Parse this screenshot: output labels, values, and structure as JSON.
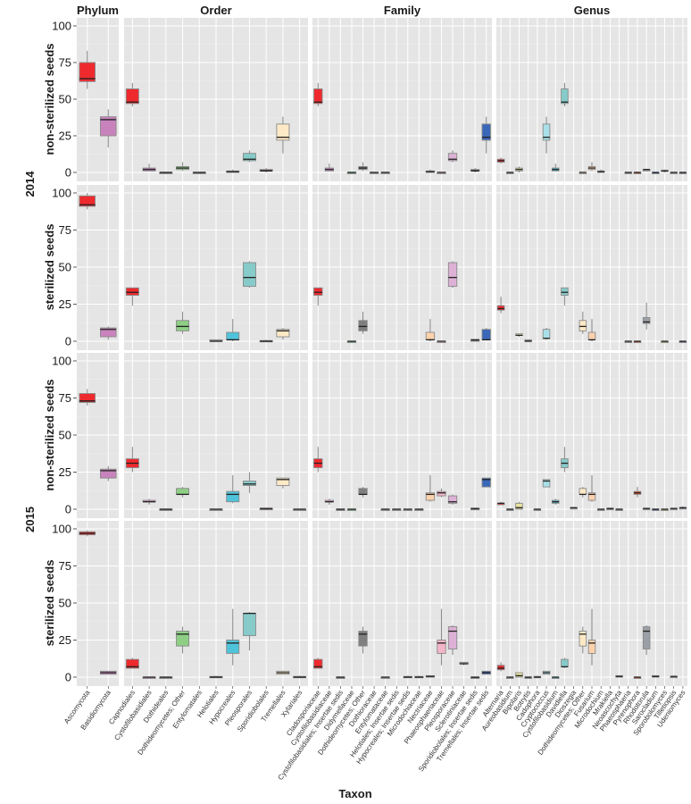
{
  "chart_data": {
    "type": "boxplot",
    "xlabel": "Taxon",
    "ylim": [
      0,
      100
    ],
    "yticks": [
      0,
      25,
      50,
      75,
      100
    ],
    "grid": true,
    "legend": "none",
    "facet_columns": [
      "Phylum",
      "Order",
      "Family",
      "Genus"
    ],
    "facet_rows": [
      {
        "year": "2014",
        "label": "non-sterilized seeds"
      },
      {
        "year": "2014",
        "label": "sterilized seeds"
      },
      {
        "year": "2015",
        "label": "non-sterilized seeds"
      },
      {
        "year": "2015",
        "label": "sterilized seeds"
      }
    ],
    "categories": {
      "Phylum": [
        "Ascomycota",
        "Basidiomycota"
      ],
      "Order": [
        "Capnodiales",
        "Cystofilobasidiales",
        "Dothideales",
        "Dothideomycetes; Other",
        "Entylomatales",
        "Helotiales",
        "Hypocreales",
        "Pleosporales",
        "Sporidiobolales",
        "Tremellales",
        "Xylariales"
      ],
      "Family": [
        "Cladosporiaceae",
        "Cystofilobasidiaceae",
        "Cystofilobasidiales; Insertae sedis",
        "Didymellaceae",
        "Dothideomycetes; Other",
        "Dothioraceae",
        "Entylomataceae",
        "Helotiales; Insertae sedis",
        "Hypocreales; Insertae sedis",
        "Microdochiaceae",
        "Nectriaceae",
        "Phaeosphaeriaceae",
        "Pleosporaceae",
        "Sclerotiniaceae",
        "Sporidiobolales; Insertae sedis",
        "Tremellales; Insertae sedis"
      ],
      "Genus": [
        "Alternaria",
        "Aureobasidium",
        "Bipolaris",
        "Botrytis",
        "Cadophora",
        "Cryptococcus",
        "Cystofilobasidium",
        "Davidiella",
        "Dioszegia",
        "Dothideomycetes; Other",
        "Fusarium",
        "Microdochium",
        "Mrakiella",
        "Neoascochyta",
        "Phaeosphaeria",
        "Pyrenophora",
        "Rhodotorula",
        "Sarocladium",
        "Sporobolomyces",
        "Tilletiopsis",
        "Udeniomyces"
      ]
    },
    "colors": {
      "Phylum": [
        "#ee2a2e",
        "#c883bd"
      ],
      "Order": [
        "#ee2a2e",
        "#c883bd",
        "#7f7f7f",
        "#8ecf85",
        "#7f7f7f",
        "#9aa0a6",
        "#4fc3d9",
        "#86cbc9",
        "#6b4f5a",
        "#fde9c6",
        "#9aa0a6"
      ],
      "Family": [
        "#ee2a2e",
        "#d58bc7",
        "#7f7f7f",
        "#6cc47a",
        "#7f7f7f",
        "#9aa0a6",
        "#9aa0a6",
        "#9aa0a6",
        "#9aa0a6",
        "#9aa0a6",
        "#fcd2ad",
        "#f5b5c8",
        "#ddb1d6",
        "#9aa0a6",
        "#4f5c6b",
        "#3a67b8"
      ],
      "Genus": [
        "#ee2a2e",
        "#9aa0a6",
        "#e8e3a0",
        "#6d8f7a",
        "#9aa0a6",
        "#a8dfe8",
        "#46b8cc",
        "#86cbc9",
        "#9aa0a6",
        "#fde9c6",
        "#fcd2ad",
        "#9aa0a6",
        "#6f7380",
        "#9aa0a6",
        "#9aa0a6",
        "#f04e23",
        "#9aa0a6",
        "#3a67b8",
        "#bdb66a",
        "#9aa0a6",
        "#8b6f9a"
      ]
    },
    "panels": [
      {
        "row": 0,
        "Phylum": [
          [
            57,
            62,
            64,
            75,
            83
          ],
          [
            17,
            25,
            36,
            38,
            43
          ]
        ],
        "Order": [
          [
            45,
            47,
            48,
            57,
            61
          ],
          [
            1,
            1,
            2,
            3,
            6
          ],
          [
            0,
            0,
            0,
            0,
            0
          ],
          [
            1,
            2,
            3,
            4,
            7
          ],
          [
            0,
            0,
            0,
            0,
            0
          ],
          null,
          [
            0,
            0,
            0.5,
            1,
            2
          ],
          [
            7,
            8,
            9,
            13,
            15
          ],
          [
            0,
            1,
            1,
            2,
            3
          ],
          [
            13,
            22,
            24,
            33,
            38
          ],
          null
        ],
        "Family": [
          [
            45,
            47,
            48,
            57,
            61
          ],
          [
            1,
            1,
            2,
            3,
            6
          ],
          null,
          [
            0,
            0,
            0,
            0,
            0
          ],
          [
            1,
            2,
            3,
            4,
            7
          ],
          [
            0,
            0,
            0,
            0,
            0
          ],
          [
            0,
            0,
            0,
            0,
            0
          ],
          null,
          null,
          null,
          [
            0,
            0,
            0.5,
            1,
            2
          ],
          [
            0,
            0,
            0,
            0,
            0
          ],
          [
            7,
            8,
            9,
            13,
            15
          ],
          null,
          [
            0,
            1,
            1,
            2,
            3
          ],
          [
            13,
            22,
            24,
            33,
            38
          ]
        ],
        "Genus": [
          [
            6,
            7,
            8,
            9,
            10
          ],
          [
            0,
            0,
            0,
            0,
            0
          ],
          [
            0,
            1,
            2,
            3,
            4
          ],
          null,
          null,
          [
            13,
            22,
            24,
            33,
            38
          ],
          [
            1,
            1,
            2,
            3,
            6
          ],
          [
            45,
            47,
            48,
            57,
            61
          ],
          null,
          [
            0,
            0,
            0,
            0,
            0
          ],
          [
            1,
            2,
            3,
            4,
            7
          ],
          [
            0,
            0,
            0.5,
            1,
            2
          ],
          null,
          null,
          [
            0,
            0,
            0,
            0,
            0
          ],
          [
            0,
            0,
            0,
            0,
            0
          ],
          [
            1,
            1,
            2,
            2,
            2
          ],
          [
            0,
            0,
            0,
            0,
            0
          ],
          [
            0,
            1,
            1,
            1.5,
            2
          ],
          [
            0,
            0,
            0,
            0,
            0
          ],
          [
            0,
            0,
            0,
            0,
            0
          ]
        ]
      },
      {
        "row": 1,
        "Phylum": [
          [
            89,
            91,
            92,
            98,
            100
          ],
          [
            1,
            3,
            8,
            9,
            10
          ]
        ],
        "Order": [
          [
            24,
            31,
            33,
            36,
            36
          ],
          null,
          null,
          [
            5,
            7,
            10,
            14,
            20
          ],
          null,
          [
            0,
            0,
            0,
            1,
            1
          ],
          [
            0,
            1,
            1,
            6,
            15
          ],
          [
            36,
            37,
            43,
            53,
            54
          ],
          [
            0,
            0,
            0,
            0.5,
            1
          ],
          [
            1,
            3,
            7,
            8,
            9
          ],
          null
        ],
        "Family": [
          [
            24,
            31,
            33,
            36,
            36
          ],
          null,
          null,
          [
            0,
            0,
            0,
            0,
            0
          ],
          [
            5,
            7,
            10,
            14,
            20
          ],
          null,
          null,
          null,
          null,
          null,
          [
            0,
            1,
            1,
            6,
            15
          ],
          [
            0,
            0,
            0,
            0,
            0
          ],
          [
            36,
            37,
            43,
            53,
            54
          ],
          null,
          [
            0,
            0,
            1,
            1,
            1
          ],
          [
            1,
            1,
            1,
            8,
            9
          ]
        ],
        "Genus": [
          [
            19,
            21,
            22,
            24,
            30
          ],
          null,
          [
            3,
            4,
            4,
            5,
            5
          ],
          [
            0,
            0,
            0,
            1,
            1
          ],
          null,
          [
            1,
            2,
            2,
            8,
            9
          ],
          null,
          [
            24,
            31,
            33,
            36,
            36
          ],
          null,
          [
            5,
            7,
            10,
            14,
            20
          ],
          [
            0,
            1,
            1,
            6,
            15
          ],
          null,
          null,
          null,
          [
            0,
            0,
            0,
            0,
            0
          ],
          [
            0,
            0,
            0,
            0,
            0
          ],
          [
            8,
            12,
            13,
            16,
            26
          ],
          null,
          [
            0,
            0,
            0,
            0,
            0
          ],
          null,
          [
            0,
            0,
            0,
            0,
            0
          ]
        ]
      },
      {
        "row": 2,
        "Phylum": [
          [
            70,
            72,
            73,
            78,
            81
          ],
          [
            19,
            21,
            26,
            27,
            29
          ]
        ],
        "Order": [
          [
            25,
            28,
            31,
            34,
            42
          ],
          [
            3,
            5,
            5,
            6,
            7
          ],
          [
            0,
            0,
            0,
            0,
            0
          ],
          [
            8,
            10,
            10,
            14,
            15
          ],
          null,
          [
            0,
            0,
            0,
            0,
            0
          ],
          [
            4,
            5,
            10,
            12,
            23
          ],
          [
            11,
            16,
            17,
            19,
            25
          ],
          [
            0,
            0,
            0.5,
            0.5,
            1
          ],
          [
            14,
            16,
            20,
            21,
            21
          ],
          [
            0,
            0,
            0,
            0,
            0
          ]
        ],
        "Family": [
          [
            25,
            28,
            31,
            34,
            42
          ],
          [
            3,
            5,
            5,
            6,
            7
          ],
          [
            0,
            0,
            0,
            0,
            0
          ],
          [
            0,
            0,
            0,
            0,
            0
          ],
          [
            8,
            10,
            10,
            14,
            15
          ],
          null,
          [
            0,
            0,
            0,
            0,
            0
          ],
          [
            0,
            0,
            0,
            0,
            0
          ],
          [
            0,
            0,
            0,
            0,
            0
          ],
          [
            0,
            0,
            0,
            0,
            0
          ],
          [
            5,
            6,
            10,
            11,
            23
          ],
          [
            8,
            9,
            11,
            12,
            14
          ],
          [
            3,
            4,
            5,
            9,
            10
          ],
          null,
          [
            0,
            0,
            0.5,
            0.5,
            1
          ],
          [
            15,
            15,
            20,
            21,
            21
          ]
        ],
        "Genus": [
          [
            3,
            3,
            4,
            4,
            5
          ],
          [
            0,
            0,
            0,
            0,
            0
          ],
          [
            0,
            0,
            1,
            4,
            5
          ],
          null,
          [
            0,
            0,
            0,
            0,
            0
          ],
          [
            15,
            15,
            19,
            20,
            20
          ],
          [
            3,
            4,
            5,
            6,
            7
          ],
          [
            25,
            28,
            31,
            34,
            42
          ],
          [
            1,
            1,
            1,
            1,
            1
          ],
          [
            8,
            10,
            10,
            14,
            15
          ],
          [
            5,
            6,
            10,
            11,
            23
          ],
          [
            0,
            0,
            0,
            0,
            0
          ],
          [
            0,
            0,
            0.5,
            0.5,
            1
          ],
          [
            0,
            0,
            0,
            0,
            0
          ],
          null,
          [
            8,
            10,
            11,
            12,
            15
          ],
          [
            0,
            0,
            0.5,
            0.5,
            1
          ],
          [
            0,
            0,
            0,
            0,
            0
          ],
          [
            0,
            0,
            0,
            0,
            0
          ],
          [
            0,
            0,
            0.5,
            0.5,
            1
          ],
          [
            0,
            1,
            1,
            1,
            2
          ]
        ]
      },
      {
        "row": 3,
        "Phylum": [
          [
            95,
            96,
            97,
            98,
            99
          ],
          [
            2,
            2,
            3,
            4,
            4
          ]
        ],
        "Order": [
          [
            6,
            6,
            7,
            12,
            13
          ],
          [
            0,
            0,
            0,
            0,
            0
          ],
          [
            0,
            0,
            0,
            0,
            0
          ],
          [
            16,
            21,
            29,
            31,
            34
          ],
          null,
          [
            0,
            0,
            0,
            0.5,
            1
          ],
          [
            8,
            16,
            23,
            25,
            46
          ],
          [
            18,
            28,
            43,
            43,
            44
          ],
          null,
          [
            2,
            2,
            3,
            4,
            4
          ],
          [
            0,
            0,
            0,
            0.5,
            1
          ]
        ],
        "Family": [
          [
            6,
            6,
            7,
            12,
            13
          ],
          null,
          [
            0,
            0,
            0,
            0,
            0
          ],
          null,
          [
            16,
            21,
            29,
            31,
            34
          ],
          null,
          [
            0,
            0,
            0,
            0,
            0
          ],
          null,
          [
            0,
            0,
            0,
            0.5,
            1
          ],
          [
            0,
            0,
            0,
            0.5,
            1
          ],
          [
            0,
            0,
            0.5,
            1,
            1
          ],
          [
            8,
            16,
            23,
            25,
            46
          ],
          [
            15,
            19,
            31,
            34,
            35
          ],
          [
            8,
            9,
            9,
            10,
            10
          ],
          [
            0,
            0,
            0,
            0,
            0
          ],
          [
            2,
            2,
            3,
            4,
            4
          ]
        ],
        "Genus": [
          [
            4,
            5,
            6,
            8,
            10
          ],
          [
            0,
            0,
            0,
            0,
            0
          ],
          [
            0,
            0,
            1,
            3,
            3
          ],
          [
            0,
            0,
            0,
            0,
            0
          ],
          [
            0,
            0,
            0,
            0.5,
            1
          ],
          [
            2,
            2,
            3,
            4,
            4
          ],
          [
            0,
            0,
            0,
            0,
            0
          ],
          [
            6,
            7,
            7,
            12,
            13
          ],
          null,
          [
            16,
            21,
            29,
            31,
            34
          ],
          [
            8,
            16,
            23,
            25,
            46
          ],
          null,
          null,
          [
            0,
            0,
            0.5,
            1,
            1
          ],
          null,
          [
            0,
            0,
            0,
            0,
            0
          ],
          [
            15,
            19,
            31,
            34,
            35
          ],
          [
            0,
            0,
            0.5,
            1,
            1
          ],
          null,
          [
            0,
            0,
            0.5,
            0.5,
            1
          ],
          null
        ]
      }
    ]
  }
}
